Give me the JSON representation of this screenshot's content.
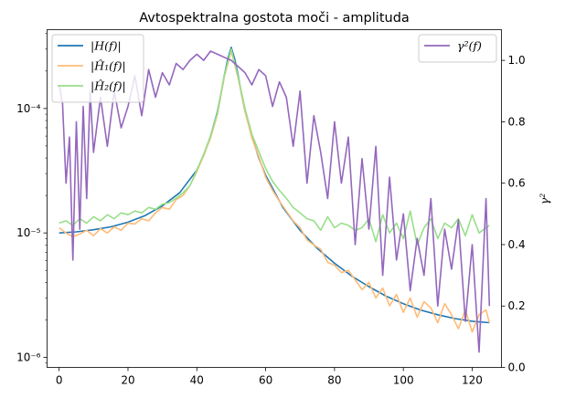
{
  "chart_data": {
    "type": "line",
    "title": "Avtospektralna gostota moči - amplituda",
    "x_ticks": [
      "0",
      "20",
      "40",
      "60",
      "80",
      "100",
      "120"
    ],
    "xlim": [
      -3.5,
      128.5
    ],
    "left_axis": {
      "scale": "log",
      "ylim": [
        8.3e-07,
        0.00043
      ],
      "ticks": [
        "10⁻⁶",
        "10⁻⁵",
        "10⁻⁴"
      ],
      "label": ""
    },
    "right_axis": {
      "scale": "linear",
      "ylim": [
        0.0,
        1.1
      ],
      "ticks": [
        "0.0",
        "0.2",
        "0.4",
        "0.6",
        "0.8",
        "1.0"
      ],
      "label": "γ²"
    },
    "legend_left": [
      "|H(f)|",
      "|Ĥ₁(f)|",
      "|Ĥ₂(f)|"
    ],
    "legend_right": [
      "γ²(f)"
    ],
    "grid": false,
    "series": [
      {
        "name": "|H(f)|",
        "axis": "left",
        "color": "#1f77b4",
        "x": [
          0,
          5,
          10,
          15,
          20,
          25,
          30,
          35,
          40,
          42,
          44,
          46,
          47,
          48,
          49,
          50,
          51,
          52,
          53,
          54,
          56,
          58,
          60,
          65,
          70,
          75,
          80,
          85,
          90,
          95,
          100,
          105,
          110,
          115,
          120,
          125
        ],
        "y": [
          1e-05,
          1.02e-05,
          1.06e-05,
          1.12e-05,
          1.22e-05,
          1.38e-05,
          1.65e-05,
          2.1e-05,
          3.2e-05,
          4.2e-05,
          6e-05,
          9.5e-05,
          0.00013,
          0.000185,
          0.00025,
          0.00031,
          0.00025,
          0.000185,
          0.00013,
          9.5e-05,
          6e-05,
          4e-05,
          2.9e-05,
          1.6e-05,
          1.05e-05,
          7.5e-06,
          5.7e-06,
          4.5e-06,
          3.7e-06,
          3.1e-06,
          2.7e-06,
          2.4e-06,
          2.2e-06,
          2.05e-06,
          1.95e-06,
          1.9e-06
        ]
      },
      {
        "name": "|Ĥ₁(f)|",
        "axis": "left",
        "color": "#ffbb78",
        "x": [
          0,
          2,
          4,
          6,
          8,
          10,
          12,
          14,
          16,
          18,
          20,
          22,
          24,
          26,
          28,
          30,
          32,
          34,
          36,
          38,
          40,
          42,
          44,
          46,
          48,
          50,
          52,
          54,
          56,
          58,
          60,
          62,
          64,
          66,
          68,
          70,
          72,
          74,
          76,
          78,
          80,
          82,
          84,
          86,
          88,
          90,
          92,
          94,
          96,
          98,
          100,
          102,
          104,
          106,
          108,
          110,
          112,
          114,
          116,
          118,
          120,
          122,
          124,
          125
        ],
        "y": [
          1.1e-05,
          1e-05,
          9.3e-06,
          9.8e-06,
          1.05e-05,
          9.5e-06,
          1.08e-05,
          1e-05,
          1.12e-05,
          1.05e-05,
          1.2e-05,
          1.18e-05,
          1.3e-05,
          1.25e-05,
          1.45e-05,
          1.6e-05,
          1.55e-05,
          1.85e-05,
          2e-05,
          2.4e-05,
          3.1e-05,
          4.2e-05,
          5.8e-05,
          9e-05,
          0.00018,
          0.00029,
          0.000175,
          9.5e-05,
          5.8e-05,
          4.1e-05,
          2.8e-05,
          2.2e-05,
          1.8e-05,
          1.5e-05,
          1.25e-05,
          1.1e-05,
          8.8e-06,
          8e-06,
          7.4e-06,
          5.8e-06,
          5.5e-06,
          4.8e-06,
          5e-06,
          4.2e-06,
          3.5e-06,
          4e-06,
          3e-06,
          3.6e-06,
          2.6e-06,
          3.2e-06,
          2.3e-06,
          3e-06,
          2.1e-06,
          2.8e-06,
          2.5e-06,
          1.9e-06,
          2.7e-06,
          2.2e-06,
          1.7e-06,
          2.4e-06,
          1.6e-06,
          2.2e-06,
          2.4e-06,
          1.9e-06
        ]
      },
      {
        "name": "|Ĥ₂(f)|",
        "axis": "left",
        "color": "#98df8a",
        "x": [
          0,
          2,
          4,
          6,
          8,
          10,
          12,
          14,
          16,
          18,
          20,
          22,
          24,
          26,
          28,
          30,
          32,
          34,
          36,
          38,
          40,
          42,
          44,
          46,
          48,
          50,
          52,
          54,
          56,
          58,
          60,
          62,
          64,
          66,
          68,
          70,
          72,
          74,
          76,
          78,
          80,
          82,
          84,
          86,
          88,
          90,
          92,
          94,
          96,
          98,
          100,
          102,
          104,
          106,
          108,
          110,
          112,
          114,
          116,
          118,
          120,
          122,
          124,
          125
        ],
        "y": [
          1.2e-05,
          1.25e-05,
          1.15e-05,
          1.3e-05,
          1.2e-05,
          1.35e-05,
          1.25e-05,
          1.4e-05,
          1.3e-05,
          1.45e-05,
          1.4e-05,
          1.5e-05,
          1.45e-05,
          1.6e-05,
          1.55e-05,
          1.7e-05,
          1.75e-05,
          1.9e-05,
          2.1e-05,
          2.4e-05,
          3.2e-05,
          4.3e-05,
          6e-05,
          9.3e-05,
          0.000185,
          0.0003,
          0.00018,
          0.0001,
          6.2e-05,
          4.5e-05,
          3.3e-05,
          2.6e-05,
          2.2e-05,
          1.9e-05,
          1.6e-05,
          1.45e-05,
          1.3e-05,
          1.25e-05,
          1.05e-05,
          1.35e-05,
          1.1e-05,
          1.2e-05,
          1.15e-05,
          1.05e-05,
          1.1e-05,
          1.3e-05,
          8.5e-06,
          1.4e-05,
          1e-05,
          1.2e-05,
          9e-06,
          1.5e-05,
          8e-06,
          1.1e-05,
          1.3e-05,
          9e-06,
          1.2e-05,
          1.1e-05,
          1.3e-05,
          9.5e-06,
          1.4e-05,
          1e-05,
          1.1e-05,
          1.15e-05
        ]
      },
      {
        "name": "γ²(f)",
        "axis": "right",
        "color": "#9467bd",
        "x": [
          0,
          1,
          2,
          3,
          4,
          5,
          6,
          7,
          8,
          9,
          10,
          12,
          14,
          16,
          18,
          20,
          22,
          24,
          26,
          28,
          30,
          32,
          34,
          36,
          38,
          40,
          42,
          44,
          46,
          48,
          50,
          52,
          54,
          56,
          58,
          60,
          62,
          64,
          66,
          68,
          70,
          72,
          74,
          76,
          78,
          80,
          82,
          84,
          86,
          88,
          90,
          92,
          94,
          96,
          98,
          100,
          102,
          104,
          106,
          108,
          110,
          112,
          114,
          116,
          118,
          120,
          122,
          124,
          125
        ],
        "y": [
          0.92,
          0.86,
          0.6,
          0.75,
          0.35,
          0.8,
          0.45,
          0.85,
          0.55,
          0.9,
          0.7,
          0.88,
          0.72,
          0.9,
          0.78,
          0.85,
          0.95,
          0.82,
          0.97,
          0.88,
          0.96,
          0.92,
          0.99,
          0.97,
          1.0,
          1.02,
          1.0,
          1.03,
          1.02,
          1.01,
          1.0,
          0.98,
          0.96,
          0.92,
          0.97,
          0.95,
          0.85,
          0.93,
          0.88,
          0.72,
          0.9,
          0.6,
          0.82,
          0.7,
          0.55,
          0.8,
          0.6,
          0.75,
          0.4,
          0.68,
          0.45,
          0.72,
          0.3,
          0.62,
          0.35,
          0.5,
          0.25,
          0.42,
          0.3,
          0.55,
          0.2,
          0.45,
          0.32,
          0.48,
          0.15,
          0.4,
          0.05,
          0.55,
          0.2
        ]
      }
    ]
  }
}
